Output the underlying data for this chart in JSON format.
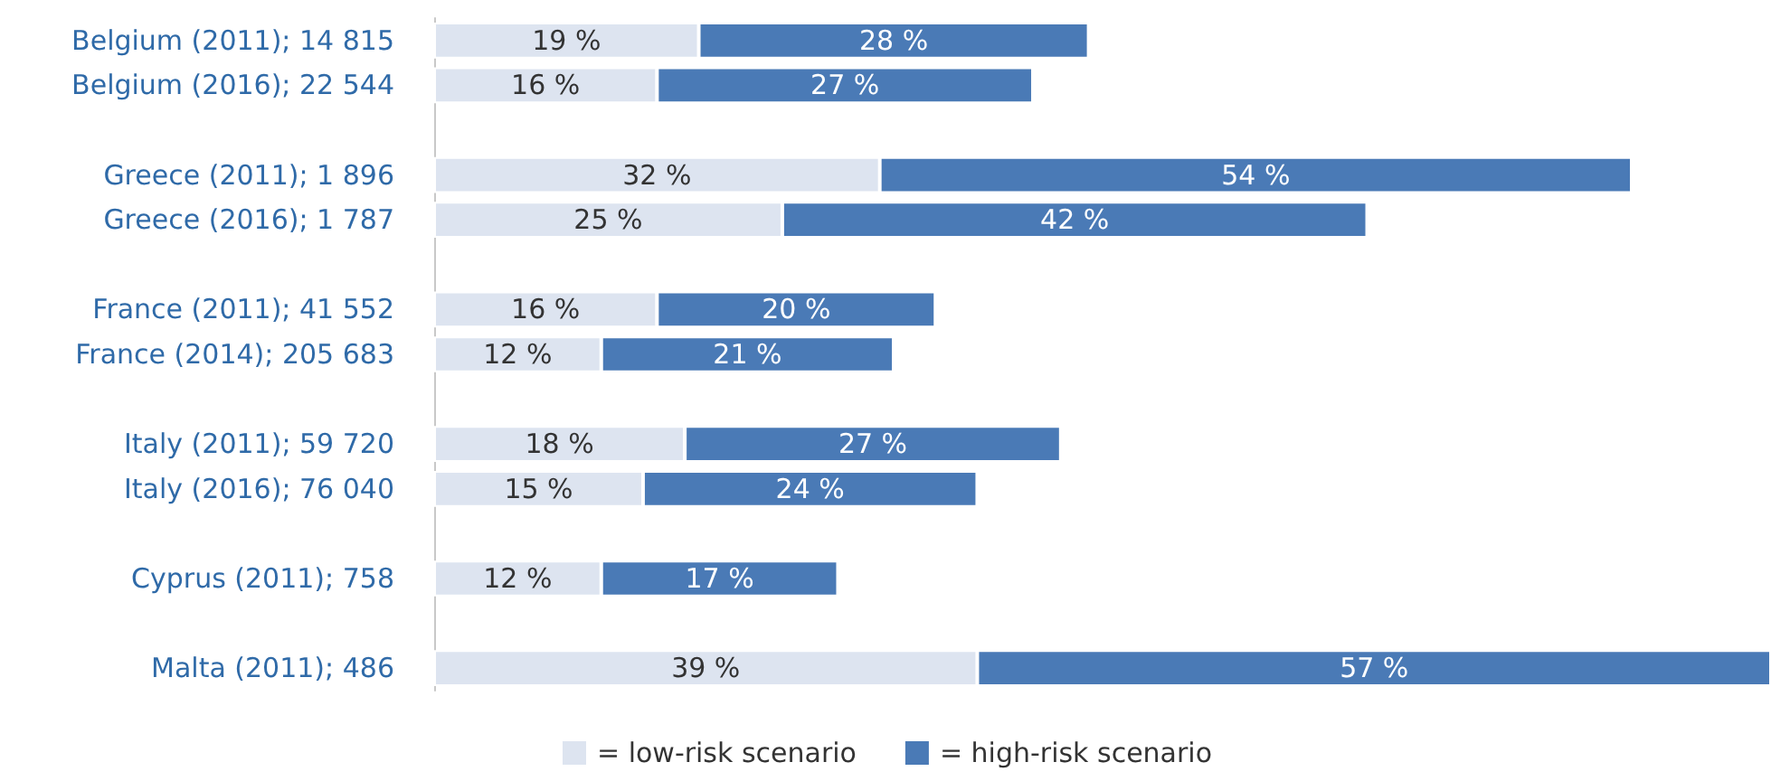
{
  "chart_data": {
    "type": "bar",
    "orientation": "horizontal",
    "stacked": true,
    "legend": "bottom",
    "categories": [
      "Belgium (2011); 14 815",
      "Belgium (2016); 22 544",
      null,
      "Greece (2011); 1 896",
      "Greece (2016); 1 787",
      null,
      "France (2011); 41 552",
      "France (2014); 205 683",
      null,
      "Italy (2011); 59 720",
      "Italy (2016); 76 040",
      null,
      "Cyprus (2011); 758",
      null,
      "Malta (2011); 486"
    ],
    "series": [
      {
        "name": "= low-risk scenario",
        "color": "#dde4f0",
        "values": [
          19,
          16,
          null,
          32,
          25,
          null,
          16,
          12,
          null,
          18,
          15,
          null,
          12,
          null,
          39
        ],
        "value_labels": [
          "19 %",
          "16 %",
          null,
          "32 %",
          "25 %",
          null,
          "16 %",
          "12 %",
          null,
          "18 %",
          "15 %",
          null,
          "12 %",
          null,
          "39 %"
        ]
      },
      {
        "name": "= high-risk scenario",
        "color": "#4a7ab6",
        "values": [
          28,
          27,
          null,
          54,
          42,
          null,
          20,
          21,
          null,
          27,
          24,
          null,
          17,
          null,
          57
        ],
        "value_labels": [
          "28 %",
          "27 %",
          null,
          "54 %",
          "42 %",
          null,
          "20 %",
          "21 %",
          null,
          "27 %",
          "24 %",
          null,
          "17 %",
          null,
          "57 %"
        ]
      }
    ]
  }
}
